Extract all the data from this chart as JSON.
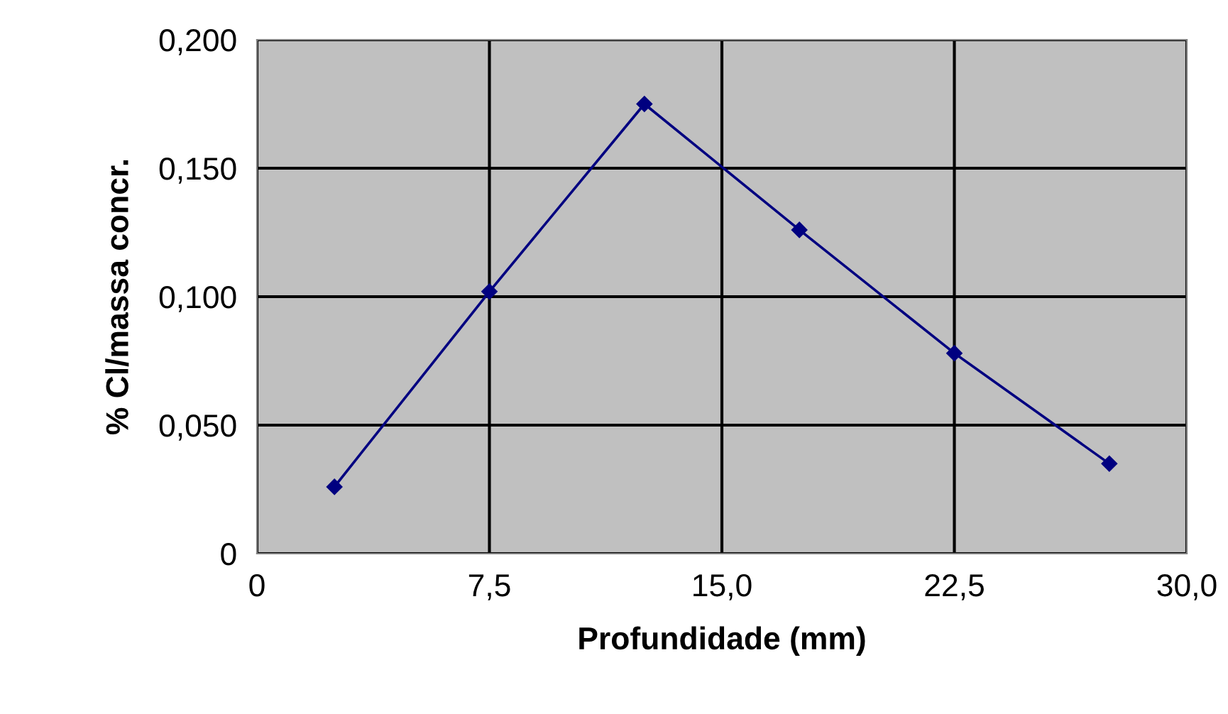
{
  "chart_data": {
    "type": "line",
    "xlabel": "Profundidade (mm)",
    "ylabel": "% Cl/massa concr.",
    "x": [
      2.5,
      7.5,
      12.5,
      17.5,
      22.5,
      27.5
    ],
    "series": [
      {
        "color": "#000080",
        "values": [
          0.026,
          0.102,
          0.175,
          0.126,
          0.078,
          0.035
        ]
      }
    ],
    "xlim": [
      0,
      30
    ],
    "ylim": [
      0,
      0.2
    ],
    "xticks": [
      0,
      {
        "value": 7.5,
        "label": "7,5"
      },
      {
        "value": 15,
        "label": "15,0"
      },
      {
        "value": 22.5,
        "label": "22,5"
      },
      {
        "value": 30,
        "label": "30,0"
      }
    ],
    "yticks": [
      0,
      {
        "value": 0.05,
        "label": "0,050"
      },
      {
        "value": 0.1,
        "label": "0,100"
      },
      {
        "value": 0.15,
        "label": "0,150"
      },
      {
        "value": 0.2,
        "label": "0,200"
      }
    ],
    "grid": true,
    "legend": false,
    "marker": "diamond",
    "line_style": "solid"
  }
}
